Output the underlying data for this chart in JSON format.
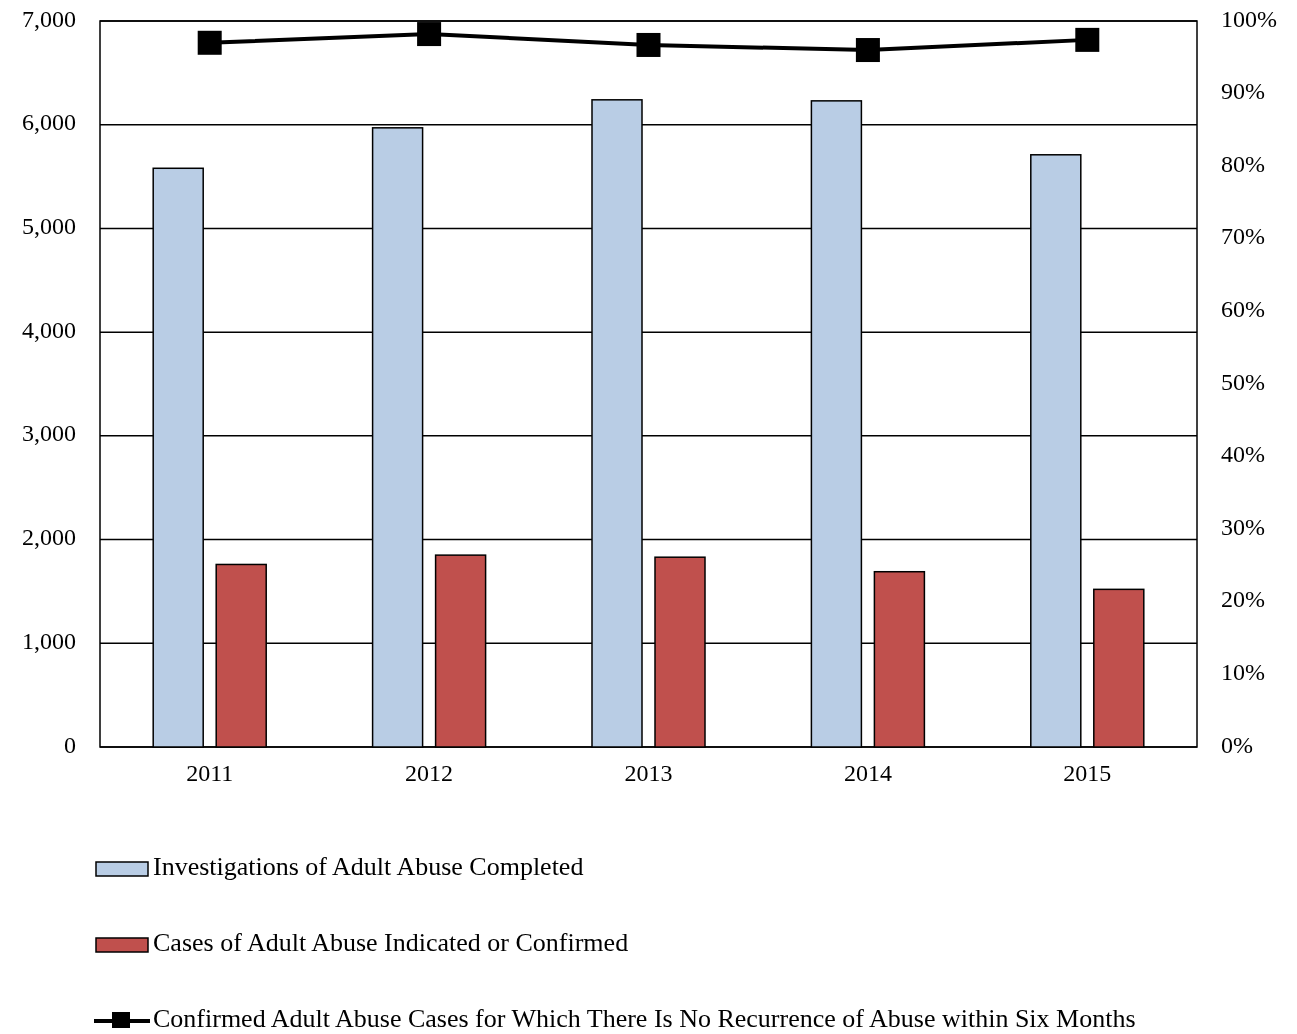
{
  "chart_data": {
    "type": "bar",
    "categories": [
      "2011",
      "2012",
      "2013",
      "2014",
      "2015"
    ],
    "series": [
      {
        "name": "Investigations of Adult Abuse Completed",
        "color": "#b9cde5",
        "values": [
          5580,
          5970,
          6240,
          6230,
          5710
        ]
      },
      {
        "name": "Cases of Adult Abuse Indicated or Confirmed",
        "color": "#c0504d",
        "values": [
          1760,
          1850,
          1830,
          1690,
          1520
        ]
      },
      {
        "name": "Confirmed Adult Abuse Cases for Which There Is No Recurrence of Abuse within Six Months",
        "color": "#000000",
        "type": "line",
        "axis": "y2",
        "marker": "square",
        "values": [
          97.0,
          98.2,
          96.7,
          96.0,
          97.4
        ]
      }
    ],
    "ylim": [
      0,
      7000
    ],
    "yticks": [
      0,
      {
        "value": 1000,
        "label": "1,000"
      },
      {
        "value": 2000,
        "label": "2,000"
      },
      {
        "value": 3000,
        "label": "3,000"
      },
      {
        "value": 4000,
        "label": "4,000"
      },
      {
        "value": 5000,
        "label": "5,000"
      },
      {
        "value": 6000,
        "label": "6,000"
      },
      {
        "value": 7000,
        "label": "7,000"
      }
    ],
    "y2lim": [
      0,
      100
    ],
    "y2ticks": [
      {
        "value": 0,
        "label": "0%"
      },
      {
        "value": 10,
        "label": "10%"
      },
      {
        "value": 20,
        "label": "20%"
      },
      {
        "value": 30,
        "label": "30%"
      },
      {
        "value": 40,
        "label": "40%"
      },
      {
        "value": 50,
        "label": "50%"
      },
      {
        "value": 60,
        "label": "60%"
      },
      {
        "value": 70,
        "label": "70%"
      },
      {
        "value": 80,
        "label": "80%"
      },
      {
        "value": 90,
        "label": "90%"
      },
      {
        "value": 100,
        "label": "100%"
      }
    ],
    "grid": "y",
    "legend": "bottom"
  }
}
